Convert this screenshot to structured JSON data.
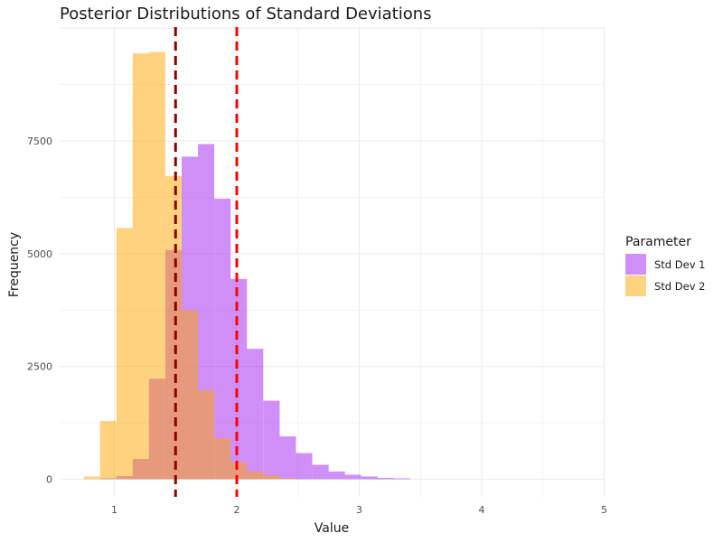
{
  "chart_data": {
    "type": "bar",
    "title": "Posterior Distributions of Standard Deviations",
    "xlabel": "Value",
    "ylabel": "Frequency",
    "xlim": [
      0.6,
      5.0
    ],
    "ylim": [
      0,
      9900
    ],
    "x_ticks": [
      1,
      2,
      3,
      4,
      5
    ],
    "y_ticks": [
      0,
      2500,
      5000,
      7500
    ],
    "grid": true,
    "bin_width": 0.1333,
    "legend": {
      "title": "Parameter",
      "placement": "right"
    },
    "series": [
      {
        "name": "Std Dev 1",
        "color": "#a020f0",
        "bin_start": [
          0.883,
          1.017,
          1.15,
          1.283,
          1.417,
          1.55,
          1.683,
          1.817,
          1.95,
          2.083,
          2.217,
          2.35,
          2.483,
          2.617,
          2.75,
          2.883,
          3.017,
          3.15,
          3.283
        ],
        "values": [
          20,
          70,
          450,
          2230,
          5080,
          7150,
          7430,
          6220,
          4440,
          2890,
          1740,
          950,
          580,
          320,
          170,
          100,
          60,
          30,
          20
        ]
      },
      {
        "name": "Std Dev 2",
        "color": "#ffa500",
        "bin_start": [
          0.75,
          0.883,
          1.017,
          1.15,
          1.283,
          1.417,
          1.55,
          1.683,
          1.817,
          1.95,
          2.083,
          2.217,
          2.35
        ],
        "values": [
          60,
          1290,
          5570,
          9440,
          9470,
          6720,
          3750,
          1970,
          910,
          380,
          170,
          90,
          30
        ]
      }
    ],
    "reference_lines": [
      {
        "x": 1.5,
        "color": "#8b0000",
        "style": "dashed"
      },
      {
        "x": 2.0,
        "color": "#ff0000",
        "style": "dashed"
      }
    ]
  }
}
